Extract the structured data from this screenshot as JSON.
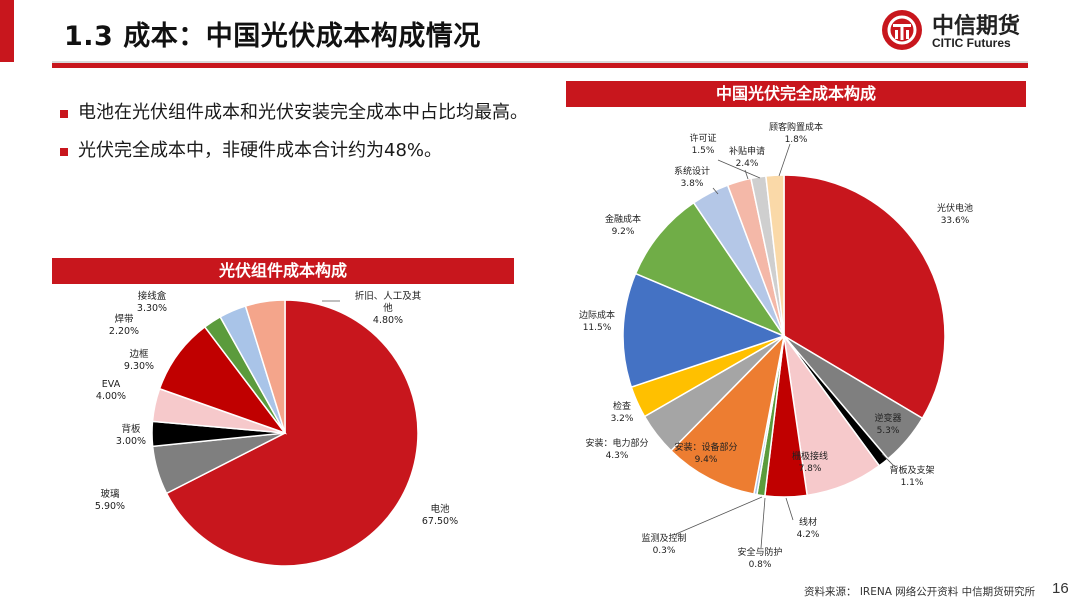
{
  "page": {
    "title": "1.3 成本：中国光伏成本构成情况",
    "logo_cn": "中信期货",
    "logo_en": "CITIC Futures",
    "bullets": [
      "电池在光伏组件成本和光伏安装完全成本中占比均最高。",
      "光伏完全成本中，非硬件成本合计约为48%。"
    ],
    "source": "资料来源：  IRENA 网络公开资料 中信期货研究所",
    "page_number": "16"
  },
  "chart_data": [
    {
      "type": "pie",
      "title": "光伏组件成本构成",
      "slices": [
        {
          "label": "电池",
          "value": 67.5,
          "display": "67.50%",
          "color": "#c8161d"
        },
        {
          "label": "玻璃",
          "value": 5.9,
          "display": "5.90%",
          "color": "#7f7f7f"
        },
        {
          "label": "背板",
          "value": 3.0,
          "display": "3.00%",
          "color": "#000000"
        },
        {
          "label": "EVA",
          "value": 4.0,
          "display": "4.00%",
          "color": "#f6c9cb"
        },
        {
          "label": "边框",
          "value": 9.3,
          "display": "9.30%",
          "color": "#c00000"
        },
        {
          "label": "焊带",
          "value": 2.2,
          "display": "2.20%",
          "color": "#5b9b3c"
        },
        {
          "label": "接线盒",
          "value": 3.3,
          "display": "3.30%",
          "color": "#a9c4e8"
        },
        {
          "label": "折旧、人工及其他",
          "value": 4.8,
          "display": "4.80%",
          "color": "#f4a58b"
        }
      ]
    },
    {
      "type": "pie",
      "title": "中国光伏完全成本构成",
      "slices": [
        {
          "label": "光伏电池",
          "value": 33.6,
          "display": "33.6%",
          "color": "#c8161d"
        },
        {
          "label": "逆变器",
          "value": 5.3,
          "display": "5.3%",
          "color": "#7f7f7f"
        },
        {
          "label": "背板及支架",
          "value": 1.1,
          "display": "1.1%",
          "color": "#000000"
        },
        {
          "label": "栅极接线",
          "value": 7.8,
          "display": "7.8%",
          "color": "#f6c9cb"
        },
        {
          "label": "线材",
          "value": 4.2,
          "display": "4.2%",
          "color": "#c00000"
        },
        {
          "label": "安全与防护",
          "value": 0.8,
          "display": "0.8%",
          "color": "#5b9b3c"
        },
        {
          "label": "监测及控制",
          "value": 0.3,
          "display": "0.3%",
          "color": "#a9c4e8"
        },
        {
          "label": "安装：设备部分",
          "value": 9.4,
          "display": "9.4%",
          "color": "#ed7d31"
        },
        {
          "label": "安装：电力部分",
          "value": 4.3,
          "display": "4.3%",
          "color": "#a5a5a5"
        },
        {
          "label": "检查",
          "value": 3.2,
          "display": "3.2%",
          "color": "#ffc000"
        },
        {
          "label": "边际成本",
          "value": 11.5,
          "display": "11.5%",
          "color": "#4472c4"
        },
        {
          "label": "金融成本",
          "value": 9.2,
          "display": "9.2%",
          "color": "#70ad47"
        },
        {
          "label": "系统设计",
          "value": 3.8,
          "display": "3.8%",
          "color": "#b4c7e7"
        },
        {
          "label": "补贴申请",
          "value": 2.4,
          "display": "2.4%",
          "color": "#f4b8a8"
        },
        {
          "label": "许可证",
          "value": 1.5,
          "display": "1.5%",
          "color": "#cfcfcf"
        },
        {
          "label": "顾客购置成本",
          "value": 1.8,
          "display": "1.8%",
          "color": "#fad9a8"
        }
      ]
    }
  ]
}
